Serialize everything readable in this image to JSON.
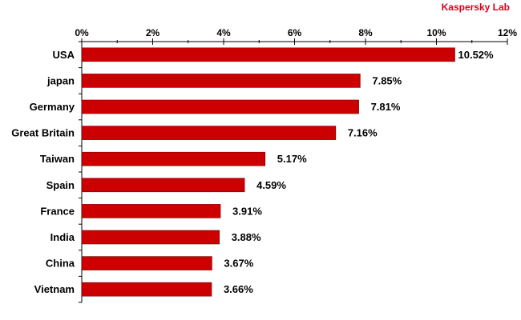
{
  "brand": {
    "label": "Kaspersky Lab",
    "color": "#d9001b"
  },
  "chart_data": {
    "type": "bar",
    "orientation": "horizontal",
    "title": "",
    "xlabel": "",
    "ylabel": "",
    "categories": [
      "USA",
      "japan",
      "Germany",
      "Great Britain",
      "Taiwan",
      "Spain",
      "France",
      "India",
      "China",
      "Vietnam"
    ],
    "values": [
      10.52,
      7.85,
      7.81,
      7.16,
      5.17,
      4.59,
      3.91,
      3.88,
      3.67,
      3.66
    ],
    "data_labels": [
      "10.52%",
      "7.85%",
      "7.81%",
      "7.16%",
      "5.17%",
      "4.59%",
      "3.91%",
      "3.88%",
      "3.67%",
      "3.66%"
    ],
    "xlim": [
      0,
      12
    ],
    "x_ticks": [
      0,
      2,
      4,
      6,
      8,
      10,
      12
    ],
    "x_tick_labels": [
      "0%",
      "2%",
      "4%",
      "6%",
      "8%",
      "10%",
      "12%"
    ],
    "axis_position": "top",
    "grid": false,
    "legend": "none",
    "bar_color": "#cc0000",
    "bar_stroke_color": "#7a0000"
  }
}
